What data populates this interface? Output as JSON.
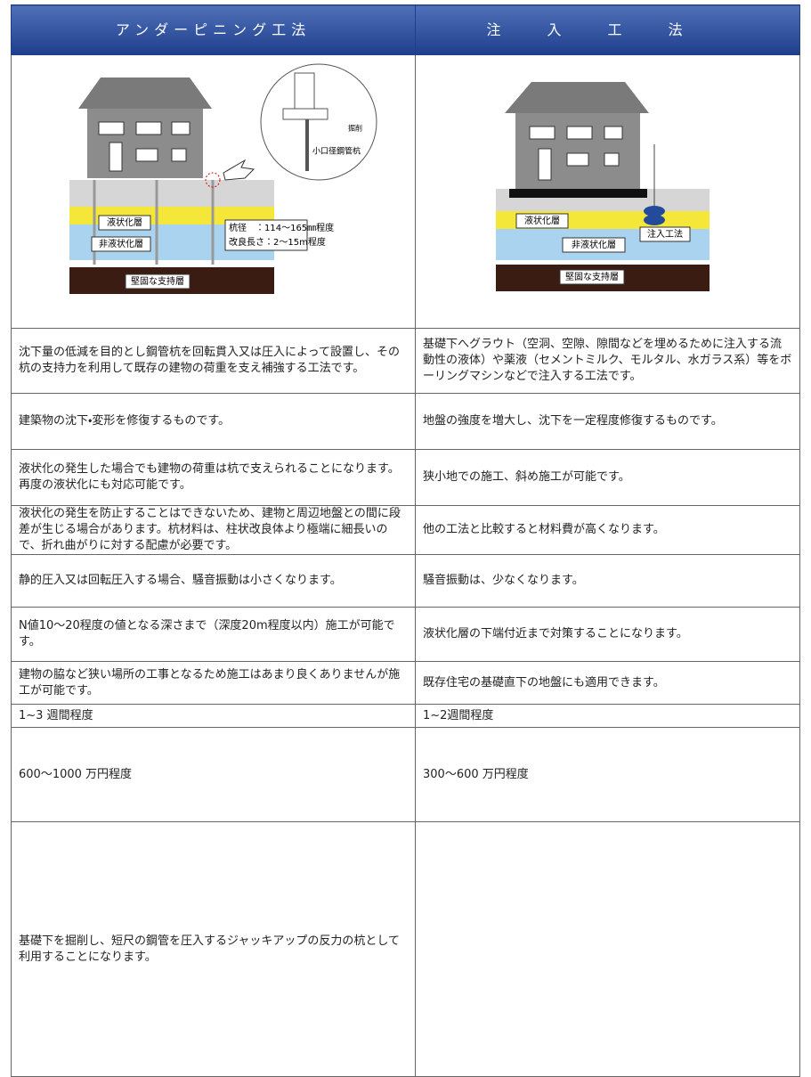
{
  "table": {
    "header": [
      "アンダーピニング工法",
      "注入工法"
    ],
    "diagrams": {
      "left": {
        "layers": [
          "液状化層",
          "非液状化層",
          "堅固な支持層"
        ],
        "pile_spec": [
          "杭径　：114～165㎜程度",
          "改良長さ：2～15m程度"
        ],
        "pile_label": "小口径鋼管杭",
        "dig_label": "掘削"
      },
      "right": {
        "layers": [
          "液状化層",
          "非液状化層",
          "堅固な支持層"
        ],
        "method_label": "注入工法"
      }
    },
    "rows": [
      [
        "沈下量の低減を目的とし鋼管杭を回転貫入又は圧入によって設置し、その杭の支持力を利用して既存の建物の荷重を支え補強する工法です。",
        "基礎下へグラウト（空洞、空隙、隙間などを埋めるために注入する流動性の液体）や薬液（セメントミルク、モルタル、水ガラス系）等をボーリングマシンなどで注入する工法です。"
      ],
      [
        "建築物の沈下・変形を修復するものです。",
        "地盤の強度を増大し、沈下を一定程度修復するものです。"
      ],
      [
        "液状化の発生した場合でも建物の荷重は杭で支えられることになります。再度の液状化にも対応可能です。",
        "狭小地での施工、斜め施工が可能です。"
      ],
      [
        "液状化の発生を防止することはできないため、建物と周辺地盤との間に段差が生じる場合があります。杭材料は、柱状改良体より極端に細長いので、折れ曲がりに対する配慮が必要です。",
        "他の工法と比較すると材料費が高くなります。"
      ],
      [
        "静的圧入又は回転圧入する場合、騒音振動は小さくなります。",
        "騒音振動は、少なくなります。"
      ],
      [
        "N値10～20程度の値となる深さまで（深度20m程度以内）施工が可能です。",
        "液状化層の下端付近まで対策することになります。"
      ],
      [
        "建物の脇など狭い場所の工事となるため施工はあまり良くありませんが施工が可能です。",
        "既存住宅の基礎直下の地盤にも適用できます。"
      ],
      [
        "1~3 週間程度",
        "1~2週間程度"
      ],
      [
        "600～1000 万円程度",
        "300～600 万円程度"
      ],
      [
        "基礎下を掘削し、短尺の鋼管を圧入するジャッキアップの反力の杭として利用することになります。"
      ]
    ]
  }
}
